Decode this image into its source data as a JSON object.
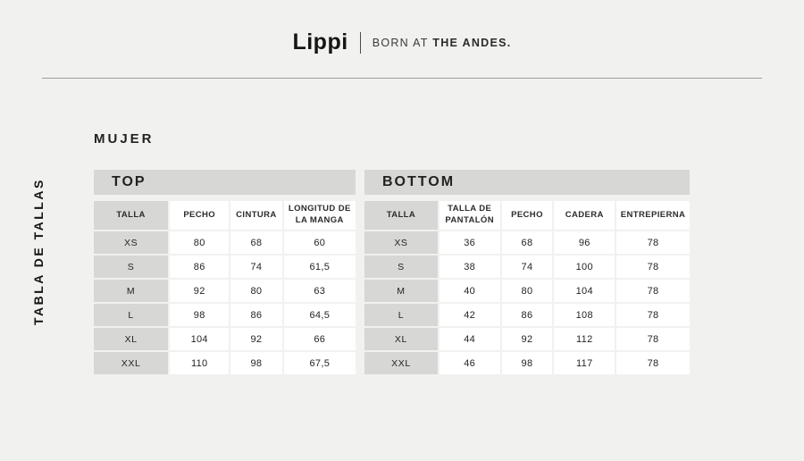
{
  "header": {
    "brand": "Lippi",
    "tagline_regular": "BORN AT ",
    "tagline_bold": "THE ANDES."
  },
  "sidebar_label": "TABLA DE TALLAS",
  "section_title": "MUJER",
  "colors": {
    "background": "#f1f1f0",
    "cell_gray": "#d7d7d5",
    "cell_white": "#ffffff",
    "rule_gray": "#9e9e9e",
    "text_dark": "#1f1f1f"
  },
  "tables": {
    "top": {
      "title": "TOP",
      "columns": [
        "TALLA",
        "PECHO",
        "CINTURA",
        "LONGITUD DE LA MANGA"
      ],
      "rows": [
        [
          "XS",
          "80",
          "68",
          "60"
        ],
        [
          "S",
          "86",
          "74",
          "61,5"
        ],
        [
          "M",
          "92",
          "80",
          "63"
        ],
        [
          "L",
          "98",
          "86",
          "64,5"
        ],
        [
          "XL",
          "104",
          "92",
          "66"
        ],
        [
          "XXL",
          "110",
          "98",
          "67,5"
        ]
      ]
    },
    "bottom": {
      "title": "BOTTOM",
      "columns": [
        "TALLA",
        "TALLA DE PANTALÓN",
        "PECHO",
        "CADERA",
        "ENTREPIERNA"
      ],
      "rows": [
        [
          "XS",
          "36",
          "68",
          "96",
          "78"
        ],
        [
          "S",
          "38",
          "74",
          "100",
          "78"
        ],
        [
          "M",
          "40",
          "80",
          "104",
          "78"
        ],
        [
          "L",
          "42",
          "86",
          "108",
          "78"
        ],
        [
          "XL",
          "44",
          "92",
          "112",
          "78"
        ],
        [
          "XXL",
          "46",
          "98",
          "117",
          "78"
        ]
      ]
    }
  }
}
